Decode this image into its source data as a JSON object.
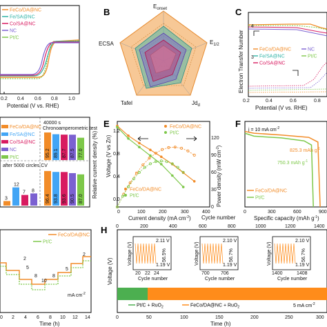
{
  "colors": {
    "fecoda": "#f28c28",
    "fesa": "#2fb3a6",
    "cosa": "#d81b60",
    "nc": "#7b61d1",
    "ptc": "#7ec84a",
    "green_bar": "#4caf50",
    "orange_bar": "#ff8c1a"
  },
  "panels": {
    "A": {
      "xlabel": "Potential (V vs. RHE)",
      "xticks": [
        "0.2",
        "0.4",
        "0.6",
        "0.8",
        "1.0"
      ],
      "legend": [
        "FeCo/DA@NC",
        "Fe/SA@NC",
        "Co/SA@NC",
        "NC",
        "Pt/C"
      ]
    },
    "B": {
      "label": "B",
      "axes": [
        "E",
        "E",
        "Jd",
        "Tafel",
        "ECSA"
      ],
      "axis_sub": [
        "onset",
        "1/2",
        "d",
        "",
        ""
      ]
    },
    "C": {
      "label": "C",
      "ylabel": "Electron Transfer Number",
      "xlabel": "Potential (V vs. RHE)",
      "xticks": [
        "0.2",
        "0.4",
        "0.6",
        "0.8"
      ],
      "yticks": [
        "3",
        "4"
      ],
      "legend": [
        "FeCo/DA@NC",
        "NC",
        "Fe/SA@NC",
        "Pt/C",
        "Co/SA@NC"
      ]
    },
    "D": {
      "ylabel": "Relative current density (%)",
      "top_note": "40000 s",
      "top_note2": "Chronoamperometric test",
      "bottom_note": "after 5000 circles CV",
      "legend": [
        "FeCo/DA@NC",
        "Fe/SA@NC",
        "Co/SA@NC",
        "NC",
        "Pt/C"
      ],
      "top_values": [
        "95.2",
        "89.1",
        "87.7",
        "87.5",
        "77.0"
      ],
      "bottom_values": [
        "3",
        "12",
        "7",
        "8"
      ],
      "bottom_values_right": [
        "96.4",
        "93.8",
        "93.6",
        "90.5",
        "87.0"
      ]
    },
    "E": {
      "label": "E",
      "xlabel": "Current density (mA cm",
      "xlabel_sup": "-2",
      "xlabel_end": ")",
      "ylabel": "Voltage (V vs Zn)",
      "ylabel2": "Power density (mW cm",
      "xticks": [
        "0",
        "100",
        "200",
        "300",
        "400"
      ],
      "yticks": [
        "0.0",
        "0.4",
        "0.8",
        "1.2"
      ],
      "y2ticks": [
        "0",
        "30",
        "60",
        "90",
        "120"
      ],
      "legend": [
        "FeCo/DA@NC",
        "Pt/C"
      ]
    },
    "F": {
      "label": "F",
      "xlabel": "Specific capacity (mAh g",
      "xlabel_sup": "-1",
      "xlabel_end": ")",
      "xticks": [
        "0",
        "300",
        "600",
        "900"
      ],
      "note": "j = 10 mA cm",
      "note_sup": "-2",
      "cap1": "825.3 mAh g",
      "cap2": "750.3 mAh g",
      "legend": [
        "FeCo/DA@NC",
        "Pt/C"
      ]
    },
    "G": {
      "xlabel": "Time (h)",
      "xticks": [
        "0",
        "2",
        "4",
        "6",
        "8",
        "10",
        "12",
        "14"
      ],
      "unit": "mA cm",
      "unit_sup": "-2",
      "legend": [
        "FeCo/DA@NC",
        "Pt/C"
      ],
      "steps": [
        "2",
        "5",
        "8",
        "10",
        "8",
        "5",
        "2"
      ]
    },
    "H": {
      "label": "H",
      "xlabel": "Time (h)",
      "toplabel": "Cycle number",
      "top_ticks": [
        "0",
        "200",
        "400",
        "600",
        "800",
        "1000",
        "1200",
        "1400"
      ],
      "bottom_ticks": [
        "0",
        "50",
        "100",
        "150",
        "200",
        "250",
        "300"
      ],
      "ylabel": "Voltage (V)",
      "insets": [
        {
          "ticks": [
            "20",
            "21",
            "22",
            "23",
            "24"
          ],
          "top": "2.11 V",
          "bot": "1.19 V",
          "eff": "56.5%"
        },
        {
          "ticks": [
            "700",
            "702",
            "704",
            "706"
          ],
          "top": "2.10 V",
          "bot": "1.19 V",
          "eff": "56.7%"
        },
        {
          "ticks": [
            "1400",
            "1402",
            "1404",
            "1406",
            "1408"
          ],
          "top": "2.10 V",
          "bot": "1.19 V",
          "eff": "56.7%"
        }
      ],
      "inset_xlabel": "Cycle number",
      "inset_ylabel": "Voltage (V)",
      "legend": [
        "Pt/C + RuO",
        "FeCo/DA@NC + RuO"
      ],
      "rate": "5 mA cm"
    }
  },
  "chart_data": [
    {
      "type": "line",
      "title": "",
      "xlabel": "Potential (V vs. RHE)",
      "xlim": [
        0.1,
        1.05
      ],
      "series": [
        {
          "name": "FeCo/DA@NC",
          "x": [
            0.1,
            0.5,
            0.75,
            0.85,
            0.9,
            0.95
          ],
          "y": [
            -5.8,
            -5.7,
            -5.5,
            -3.5,
            -1.0,
            0.0
          ]
        },
        {
          "name": "Pt/C",
          "x": [
            0.1,
            0.5,
            0.75,
            0.82,
            0.88,
            0.95
          ],
          "y": [
            -5.4,
            -5.3,
            -5.1,
            -3.0,
            -0.8,
            0.0
          ]
        }
      ]
    },
    {
      "type": "bar",
      "ylabel": "Relative current density (%)",
      "categories": [
        "FeCo/DA@NC",
        "Fe/SA@NC",
        "Co/SA@NC",
        "NC",
        "Pt/C"
      ],
      "series": [
        {
          "name": "Chronoamperometric test",
          "values": [
            95.2,
            89.1,
            87.7,
            87.5,
            77.0
          ]
        }
      ]
    },
    {
      "type": "line",
      "xlabel": "Current density (mA cm-2)",
      "ylabel": "Voltage (V vs Zn)",
      "xlim": [
        0,
        400
      ],
      "ylim": [
        0,
        1.5
      ],
      "series": [
        {
          "name": "FeCo/DA@NC",
          "x": [
            0,
            50,
            100,
            150,
            200,
            250,
            300,
            350
          ],
          "y": [
            1.42,
            1.25,
            1.12,
            1.0,
            0.88,
            0.75,
            0.6,
            0.45
          ]
        },
        {
          "name": "Pt/C",
          "x": [
            0,
            50,
            100,
            150,
            200,
            250,
            300
          ],
          "y": [
            1.4,
            1.2,
            1.05,
            0.9,
            0.75,
            0.55,
            0.35
          ]
        }
      ]
    },
    {
      "type": "line",
      "xlabel": "Specific capacity (mAh g-1)",
      "xlim": [
        0,
        900
      ],
      "series": [
        {
          "name": "FeCo/DA@NC",
          "x": [
            0,
            100,
            400,
            700,
            800,
            825
          ],
          "y": [
            1.28,
            1.25,
            1.22,
            1.18,
            1.1,
            0.0
          ]
        },
        {
          "name": "Pt/C",
          "x": [
            0,
            100,
            400,
            650,
            730,
            750
          ],
          "y": [
            1.25,
            1.2,
            1.17,
            1.12,
            1.05,
            0.0
          ]
        }
      ]
    }
  ]
}
